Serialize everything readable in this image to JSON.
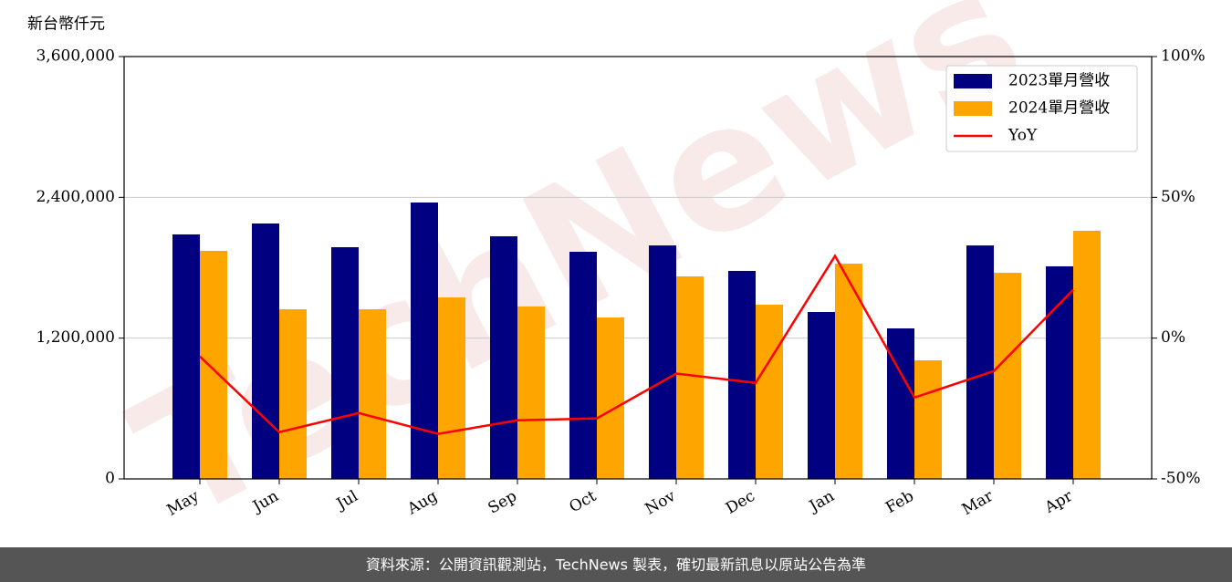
{
  "chart_data": {
    "type": "bar_line",
    "ylabel": "新台幣仟元",
    "categories": [
      "May",
      "Jun",
      "Jul",
      "Aug",
      "Sep",
      "Oct",
      "Nov",
      "Dec",
      "Jan",
      "Feb",
      "Mar",
      "Apr"
    ],
    "series": [
      {
        "name": "2023單月營收",
        "color": "#000080",
        "type": "bar",
        "values": [
          2084000,
          2177000,
          1975000,
          2356000,
          2068000,
          1936000,
          1990000,
          1773000,
          1423000,
          1283000,
          1990000,
          1812000
        ]
      },
      {
        "name": "2024單月營收",
        "color": "#ffa500",
        "type": "bar",
        "values": [
          1944000,
          1446000,
          1446000,
          1547000,
          1470000,
          1376000,
          1726000,
          1485000,
          1835000,
          1011000,
          1757000,
          2115000
        ]
      },
      {
        "name": "YoY",
        "color": "#ff0000",
        "type": "line",
        "axis": "y2",
        "values": [
          -6.5,
          -33.4,
          -26.6,
          -34.0,
          -29.2,
          -28.5,
          -12.6,
          -15.9,
          29.2,
          -21.1,
          -11.7,
          17.2
        ]
      }
    ],
    "ylim": [
      0,
      3600000
    ],
    "yticks": [
      0,
      {
        "value": 1200000,
        "label": "1,200,000"
      },
      {
        "value": 2400000,
        "label": "2,400,000"
      },
      {
        "value": 3600000,
        "label": "3,600,000"
      }
    ],
    "y2lim": [
      -50,
      100
    ],
    "y2ticks": [
      {
        "value": -50,
        "label": "-50%"
      },
      {
        "value": 0,
        "label": "0%"
      },
      {
        "value": 50,
        "label": "50%"
      },
      {
        "value": 100,
        "label": "100%"
      }
    ],
    "grid": true,
    "legend": "upper right",
    "watermark": "TechNews",
    "footer": "資料來源：公開資訊觀測站，TechNews 製表，確切最新訊息以原站公告為準"
  }
}
